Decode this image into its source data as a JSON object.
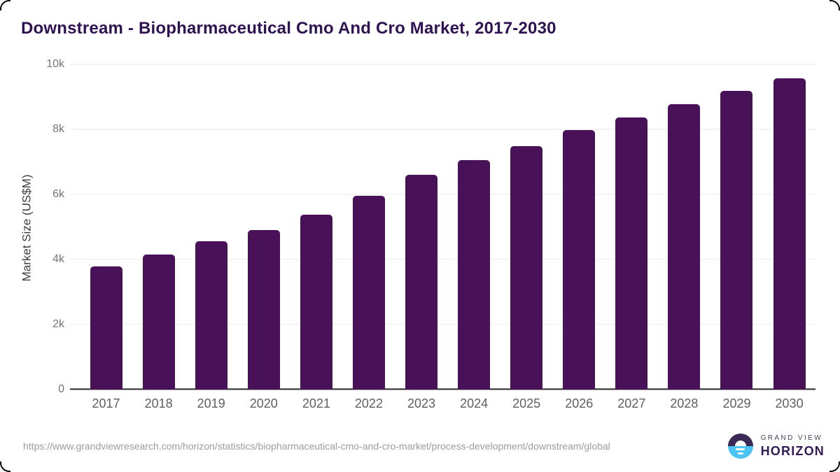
{
  "page": {
    "title": "Downstream - Biopharmaceutical Cmo And Cro Market, 2017-2030",
    "source_url": "https://www.grandviewresearch.com/horizon/statistics/biopharmaceutical-cmo-and-cro-market/process-development/downstream/global",
    "logo": {
      "top": "GRAND VIEW",
      "bottom": "HORIZON"
    }
  },
  "colors": {
    "bar": "#491158",
    "title": "#301253",
    "grid": "#e9e9e9",
    "axis_line": "#262626",
    "tick_label": "#757575",
    "x_label": "#5f5f5f",
    "axis_title": "#3d3d3d",
    "footer_text": "#9c9c9c",
    "logo_dark": "#3a2a55",
    "logo_blue": "#4ac3f5",
    "logo_horizon": "#331a54"
  },
  "chart_data": {
    "type": "bar",
    "title": "Downstream - Biopharmaceutical Cmo And Cro Market, 2017-2030",
    "xlabel": "",
    "ylabel": "Market Size (US$M)",
    "categories": [
      "2017",
      "2018",
      "2019",
      "2020",
      "2021",
      "2022",
      "2023",
      "2024",
      "2025",
      "2026",
      "2027",
      "2028",
      "2029",
      "2030"
    ],
    "values": [
      3790,
      4160,
      4550,
      4900,
      5380,
      5950,
      6600,
      7050,
      7480,
      7980,
      8370,
      8770,
      9180,
      9560
    ],
    "ylim": [
      0,
      10000
    ],
    "yticks": [
      {
        "value": 0,
        "label": "0"
      },
      {
        "value": 2000,
        "label": "2k"
      },
      {
        "value": 4000,
        "label": "4k"
      },
      {
        "value": 6000,
        "label": "6k"
      },
      {
        "value": 8000,
        "label": "8k"
      },
      {
        "value": 10000,
        "label": "10k"
      }
    ],
    "grid": true,
    "legend": false,
    "bar_color": "#491158"
  }
}
